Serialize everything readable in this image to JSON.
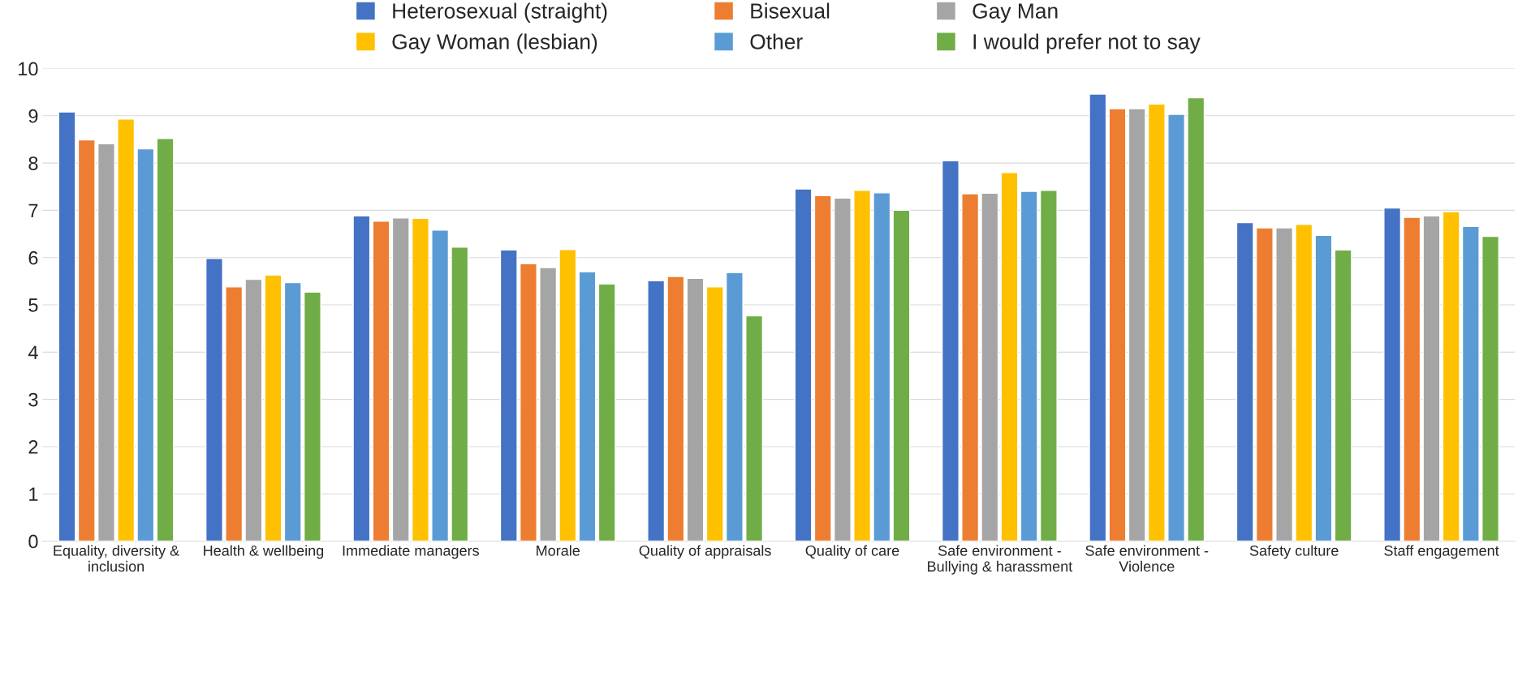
{
  "chart_data": {
    "type": "bar",
    "categories": [
      "Equality, diversity & inclusion",
      "Health & wellbeing",
      "Immediate managers",
      "Morale",
      "Quality of appraisals",
      "Quality of care",
      "Safe environment - Bullying & harassment",
      "Safe environment - Violence",
      "Safety culture",
      "Staff engagement"
    ],
    "series": [
      {
        "name": "Heterosexual (straight)",
        "color": "#4472c4",
        "values": [
          9.08,
          5.98,
          6.88,
          6.16,
          5.51,
          7.45,
          8.05,
          9.46,
          6.74,
          7.05
        ]
      },
      {
        "name": "Bisexual",
        "color": "#ed7d31",
        "values": [
          8.49,
          5.38,
          6.77,
          5.87,
          5.6,
          7.31,
          7.35,
          9.15,
          6.63,
          6.85
        ]
      },
      {
        "name": "Gay Man",
        "color": "#a5a5a5",
        "values": [
          8.41,
          5.54,
          6.84,
          5.79,
          5.56,
          7.26,
          7.36,
          9.15,
          6.63,
          6.88
        ]
      },
      {
        "name": "Gay Woman (lesbian)",
        "color": "#ffc000",
        "values": [
          8.93,
          5.63,
          6.83,
          6.17,
          5.38,
          7.42,
          7.8,
          9.25,
          6.7,
          6.97
        ]
      },
      {
        "name": "Other",
        "color": "#5b9bd5",
        "values": [
          8.3,
          5.47,
          6.58,
          5.7,
          5.68,
          7.37,
          7.4,
          9.03,
          6.47,
          6.66
        ]
      },
      {
        "name": "I would prefer not to say",
        "color": "#70ad47",
        "values": [
          8.52,
          5.27,
          6.22,
          5.44,
          4.77,
          7.0,
          7.42,
          9.38,
          6.16,
          6.45
        ]
      }
    ],
    "ylim": [
      0,
      10
    ],
    "yticks": [
      0,
      1,
      2,
      3,
      4,
      5,
      6,
      7,
      8,
      9,
      10
    ],
    "grid": "y",
    "legend": "top"
  }
}
